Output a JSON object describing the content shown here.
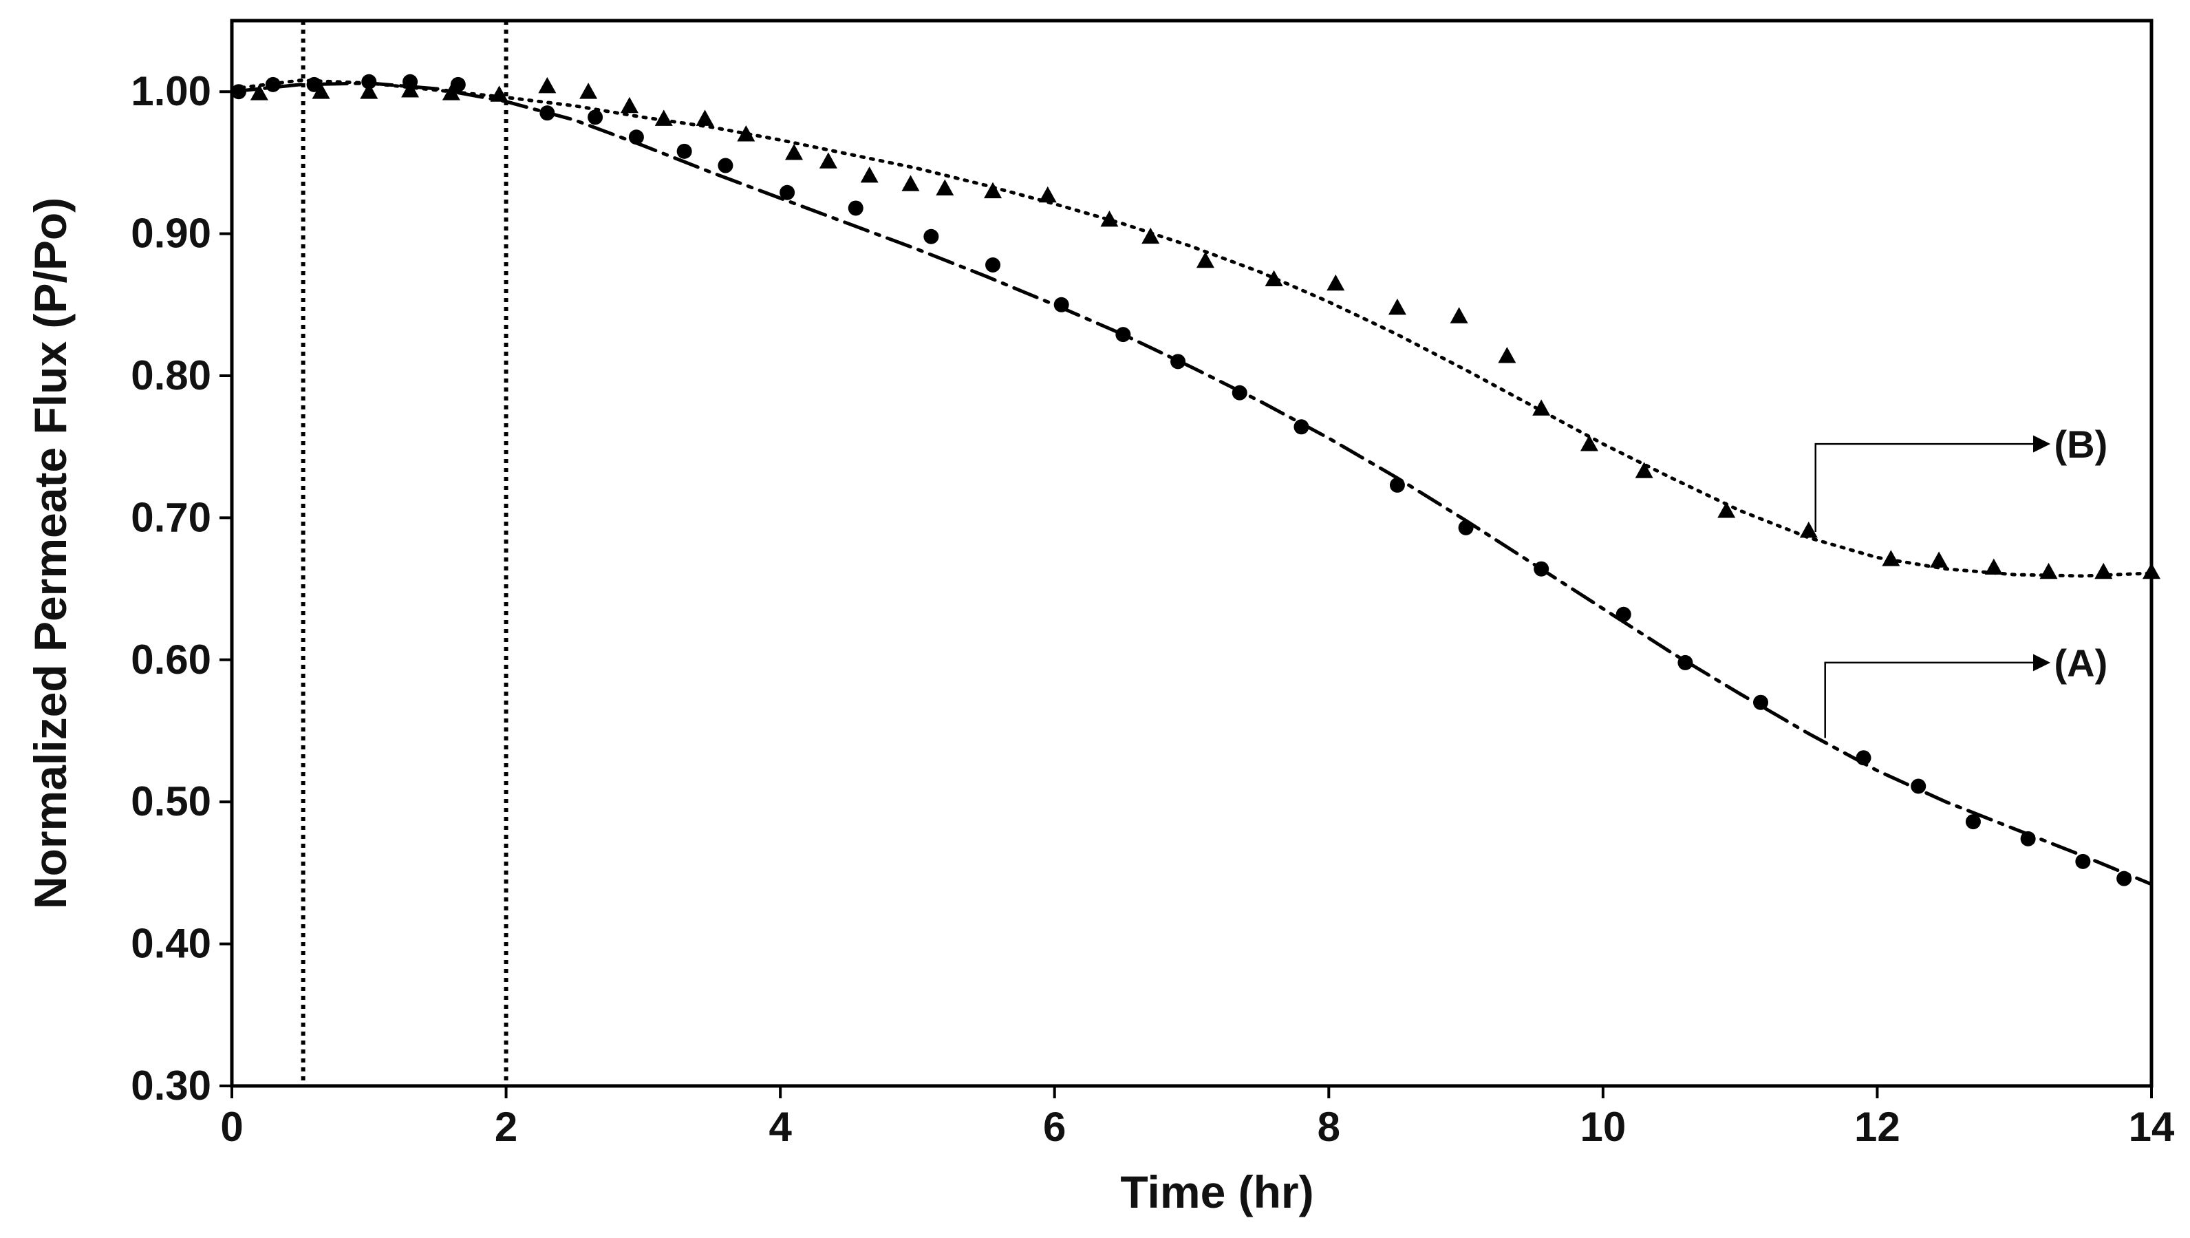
{
  "chart_data": {
    "type": "scatter",
    "title": "",
    "xlabel": "Time (hr)",
    "ylabel": "Normalized Permeate Flux (P/Po)",
    "xlim": [
      0,
      14
    ],
    "ylim": [
      0.3,
      1.05
    ],
    "xticks": [
      0,
      2,
      4,
      6,
      8,
      10,
      12,
      14
    ],
    "xtick_labels": [
      "0",
      "2",
      "4",
      "6",
      "8",
      "10",
      "12",
      "14"
    ],
    "yticks": [
      0.3,
      0.4,
      0.5,
      0.6,
      0.7,
      0.8,
      0.9,
      1.0
    ],
    "ytick_labels": [
      "0.30",
      "0.40",
      "0.50",
      "0.60",
      "0.70",
      "0.80",
      "0.90",
      "1.00"
    ],
    "grid": false,
    "legend": "none",
    "reference_lines_x": [
      0.52,
      2.0
    ],
    "series": [
      {
        "label": "(A)",
        "marker": "circle",
        "line_style": "dash-dot",
        "color": "#000000",
        "points": [
          [
            0.05,
            1.0
          ],
          [
            0.3,
            1.005
          ],
          [
            0.6,
            1.005
          ],
          [
            1.0,
            1.007
          ],
          [
            1.3,
            1.007
          ],
          [
            1.65,
            1.005
          ],
          [
            2.3,
            0.985
          ],
          [
            2.65,
            0.982
          ],
          [
            2.95,
            0.968
          ],
          [
            3.3,
            0.958
          ],
          [
            3.6,
            0.948
          ],
          [
            4.05,
            0.929
          ],
          [
            4.55,
            0.918
          ],
          [
            5.1,
            0.898
          ],
          [
            5.55,
            0.878
          ],
          [
            6.05,
            0.85
          ],
          [
            6.5,
            0.829
          ],
          [
            6.9,
            0.81
          ],
          [
            7.35,
            0.788
          ],
          [
            7.8,
            0.764
          ],
          [
            8.5,
            0.723
          ],
          [
            9.0,
            0.693
          ],
          [
            9.55,
            0.664
          ],
          [
            10.15,
            0.632
          ],
          [
            10.6,
            0.598
          ],
          [
            11.15,
            0.57
          ],
          [
            11.9,
            0.531
          ],
          [
            12.3,
            0.511
          ],
          [
            12.7,
            0.486
          ],
          [
            13.1,
            0.474
          ],
          [
            13.5,
            0.458
          ],
          [
            13.8,
            0.446
          ]
        ],
        "fit": [
          [
            0,
            1.0
          ],
          [
            0.5,
            1.005
          ],
          [
            1,
            1.006
          ],
          [
            1.5,
            1.002
          ],
          [
            2,
            0.993
          ],
          [
            2.5,
            0.98
          ],
          [
            3,
            0.962
          ],
          [
            3.5,
            0.943
          ],
          [
            4,
            0.925
          ],
          [
            4.5,
            0.907
          ],
          [
            5,
            0.889
          ],
          [
            5.5,
            0.87
          ],
          [
            6,
            0.85
          ],
          [
            6.5,
            0.829
          ],
          [
            7,
            0.806
          ],
          [
            7.5,
            0.782
          ],
          [
            8,
            0.756
          ],
          [
            8.5,
            0.728
          ],
          [
            9,
            0.698
          ],
          [
            9.5,
            0.667
          ],
          [
            10,
            0.636
          ],
          [
            10.5,
            0.605
          ],
          [
            11,
            0.576
          ],
          [
            11.5,
            0.548
          ],
          [
            12,
            0.522
          ],
          [
            12.5,
            0.5
          ],
          [
            13,
            0.481
          ],
          [
            13.5,
            0.462
          ],
          [
            14,
            0.442
          ]
        ]
      },
      {
        "label": "(B)",
        "marker": "triangle",
        "line_style": "dotted",
        "color": "#000000",
        "points": [
          [
            0.2,
            0.999
          ],
          [
            0.65,
            1.0
          ],
          [
            1.0,
            1.0
          ],
          [
            1.3,
            1.001
          ],
          [
            1.6,
            0.999
          ],
          [
            1.95,
            0.998
          ],
          [
            2.3,
            1.004
          ],
          [
            2.6,
            1.0
          ],
          [
            2.9,
            0.99
          ],
          [
            3.15,
            0.981
          ],
          [
            3.45,
            0.981
          ],
          [
            3.75,
            0.97
          ],
          [
            4.1,
            0.957
          ],
          [
            4.35,
            0.951
          ],
          [
            4.65,
            0.941
          ],
          [
            4.95,
            0.935
          ],
          [
            5.2,
            0.932
          ],
          [
            5.55,
            0.93
          ],
          [
            5.95,
            0.927
          ],
          [
            6.4,
            0.91
          ],
          [
            6.7,
            0.898
          ],
          [
            7.1,
            0.881
          ],
          [
            7.6,
            0.868
          ],
          [
            8.05,
            0.865
          ],
          [
            8.5,
            0.848
          ],
          [
            8.95,
            0.842
          ],
          [
            9.3,
            0.814
          ],
          [
            9.55,
            0.777
          ],
          [
            9.9,
            0.752
          ],
          [
            10.3,
            0.733
          ],
          [
            10.9,
            0.705
          ],
          [
            11.5,
            0.691
          ],
          [
            12.1,
            0.671
          ],
          [
            12.45,
            0.67
          ],
          [
            12.85,
            0.665
          ],
          [
            13.25,
            0.662
          ],
          [
            13.65,
            0.662
          ],
          [
            14.0,
            0.662
          ]
        ],
        "fit": [
          [
            0,
            1.002
          ],
          [
            0.5,
            1.008
          ],
          [
            1,
            1.006
          ],
          [
            1.5,
            1.001
          ],
          [
            2,
            0.996
          ],
          [
            2.5,
            0.99
          ],
          [
            3,
            0.982
          ],
          [
            3.5,
            0.975
          ],
          [
            4,
            0.966
          ],
          [
            4.5,
            0.956
          ],
          [
            5,
            0.946
          ],
          [
            5.5,
            0.934
          ],
          [
            6,
            0.921
          ],
          [
            6.5,
            0.907
          ],
          [
            7,
            0.891
          ],
          [
            7.5,
            0.873
          ],
          [
            8,
            0.852
          ],
          [
            8.5,
            0.829
          ],
          [
            9,
            0.804
          ],
          [
            9.5,
            0.778
          ],
          [
            10,
            0.752
          ],
          [
            10.5,
            0.728
          ],
          [
            11,
            0.705
          ],
          [
            11.5,
            0.686
          ],
          [
            12,
            0.672
          ],
          [
            12.5,
            0.664
          ],
          [
            13,
            0.66
          ],
          [
            13.5,
            0.659
          ],
          [
            14,
            0.661
          ]
        ]
      }
    ],
    "annotations": [
      {
        "text": "(B)",
        "anchor": [
          11.55,
          0.69
        ],
        "corner": [
          11.55,
          0.752
        ],
        "target": [
          13.25,
          0.752
        ]
      },
      {
        "text": "(A)",
        "anchor": [
          11.62,
          0.545
        ],
        "corner": [
          11.62,
          0.598
        ],
        "target": [
          13.25,
          0.598
        ]
      }
    ]
  }
}
